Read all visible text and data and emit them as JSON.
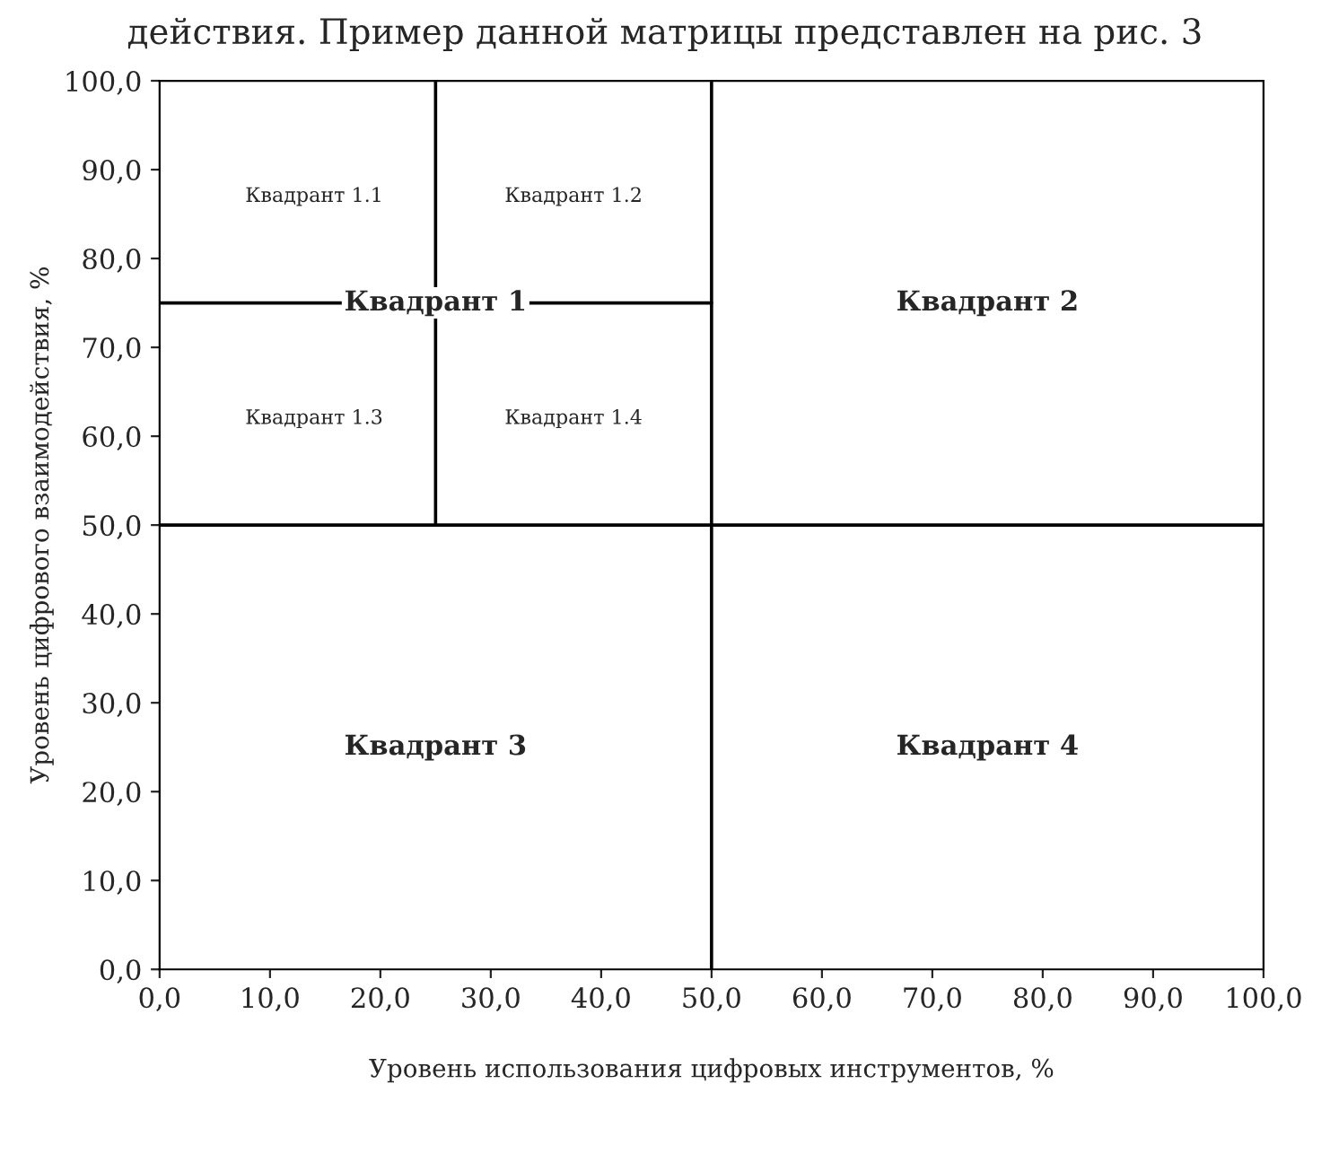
{
  "chart_data": {
    "type": "line",
    "title": "действия. Пример данной матрицы представлен на рис. 3",
    "xlabel": "Уровень использования цифровых инструментов, %",
    "ylabel": "Уровень цифрового взаимодействия, %",
    "xlim": [
      0,
      100
    ],
    "ylim": [
      0,
      100
    ],
    "xticks": [
      {
        "value": 0,
        "label": "0,0"
      },
      {
        "value": 10,
        "label": "10,0"
      },
      {
        "value": 20,
        "label": "20,0"
      },
      {
        "value": 30,
        "label": "30,0"
      },
      {
        "value": 40,
        "label": "40,0"
      },
      {
        "value": 50,
        "label": "50,0"
      },
      {
        "value": 60,
        "label": "60,0"
      },
      {
        "value": 70,
        "label": "70,0"
      },
      {
        "value": 80,
        "label": "80,0"
      },
      {
        "value": 90,
        "label": "90,0"
      },
      {
        "value": 100,
        "label": "100,0"
      }
    ],
    "yticks": [
      {
        "value": 0,
        "label": "0,0"
      },
      {
        "value": 10,
        "label": "10,0"
      },
      {
        "value": 20,
        "label": "20,0"
      },
      {
        "value": 30,
        "label": "30,0"
      },
      {
        "value": 40,
        "label": "40,0"
      },
      {
        "value": 50,
        "label": "50,0"
      },
      {
        "value": 60,
        "label": "60,0"
      },
      {
        "value": 70,
        "label": "70,0"
      },
      {
        "value": 80,
        "label": "80,0"
      },
      {
        "value": 90,
        "label": "90,0"
      },
      {
        "value": 100,
        "label": "100,0"
      }
    ],
    "series": [
      {
        "color": "#000000",
        "x": [
          50,
          50
        ],
        "values": [
          0,
          100
        ]
      },
      {
        "color": "#000000",
        "x": [
          0,
          100
        ],
        "values": [
          50,
          50
        ]
      },
      {
        "color": "#000000",
        "x": [
          25,
          25
        ],
        "values": [
          50,
          100
        ]
      },
      {
        "color": "#000000",
        "x": [
          0,
          50
        ],
        "values": [
          75,
          75
        ]
      }
    ],
    "annotations": [
      {
        "text": "Квадрант 1",
        "x": 25,
        "y": 75
      },
      "Квадрант 2",
      "Квадрант 3",
      "Квадрант 4",
      "Квадрант 1.1",
      "Квадрант 1.2",
      "Квадрант 1.3",
      "Квадрант 1.4"
    ],
    "grid": false,
    "legend": false
  }
}
